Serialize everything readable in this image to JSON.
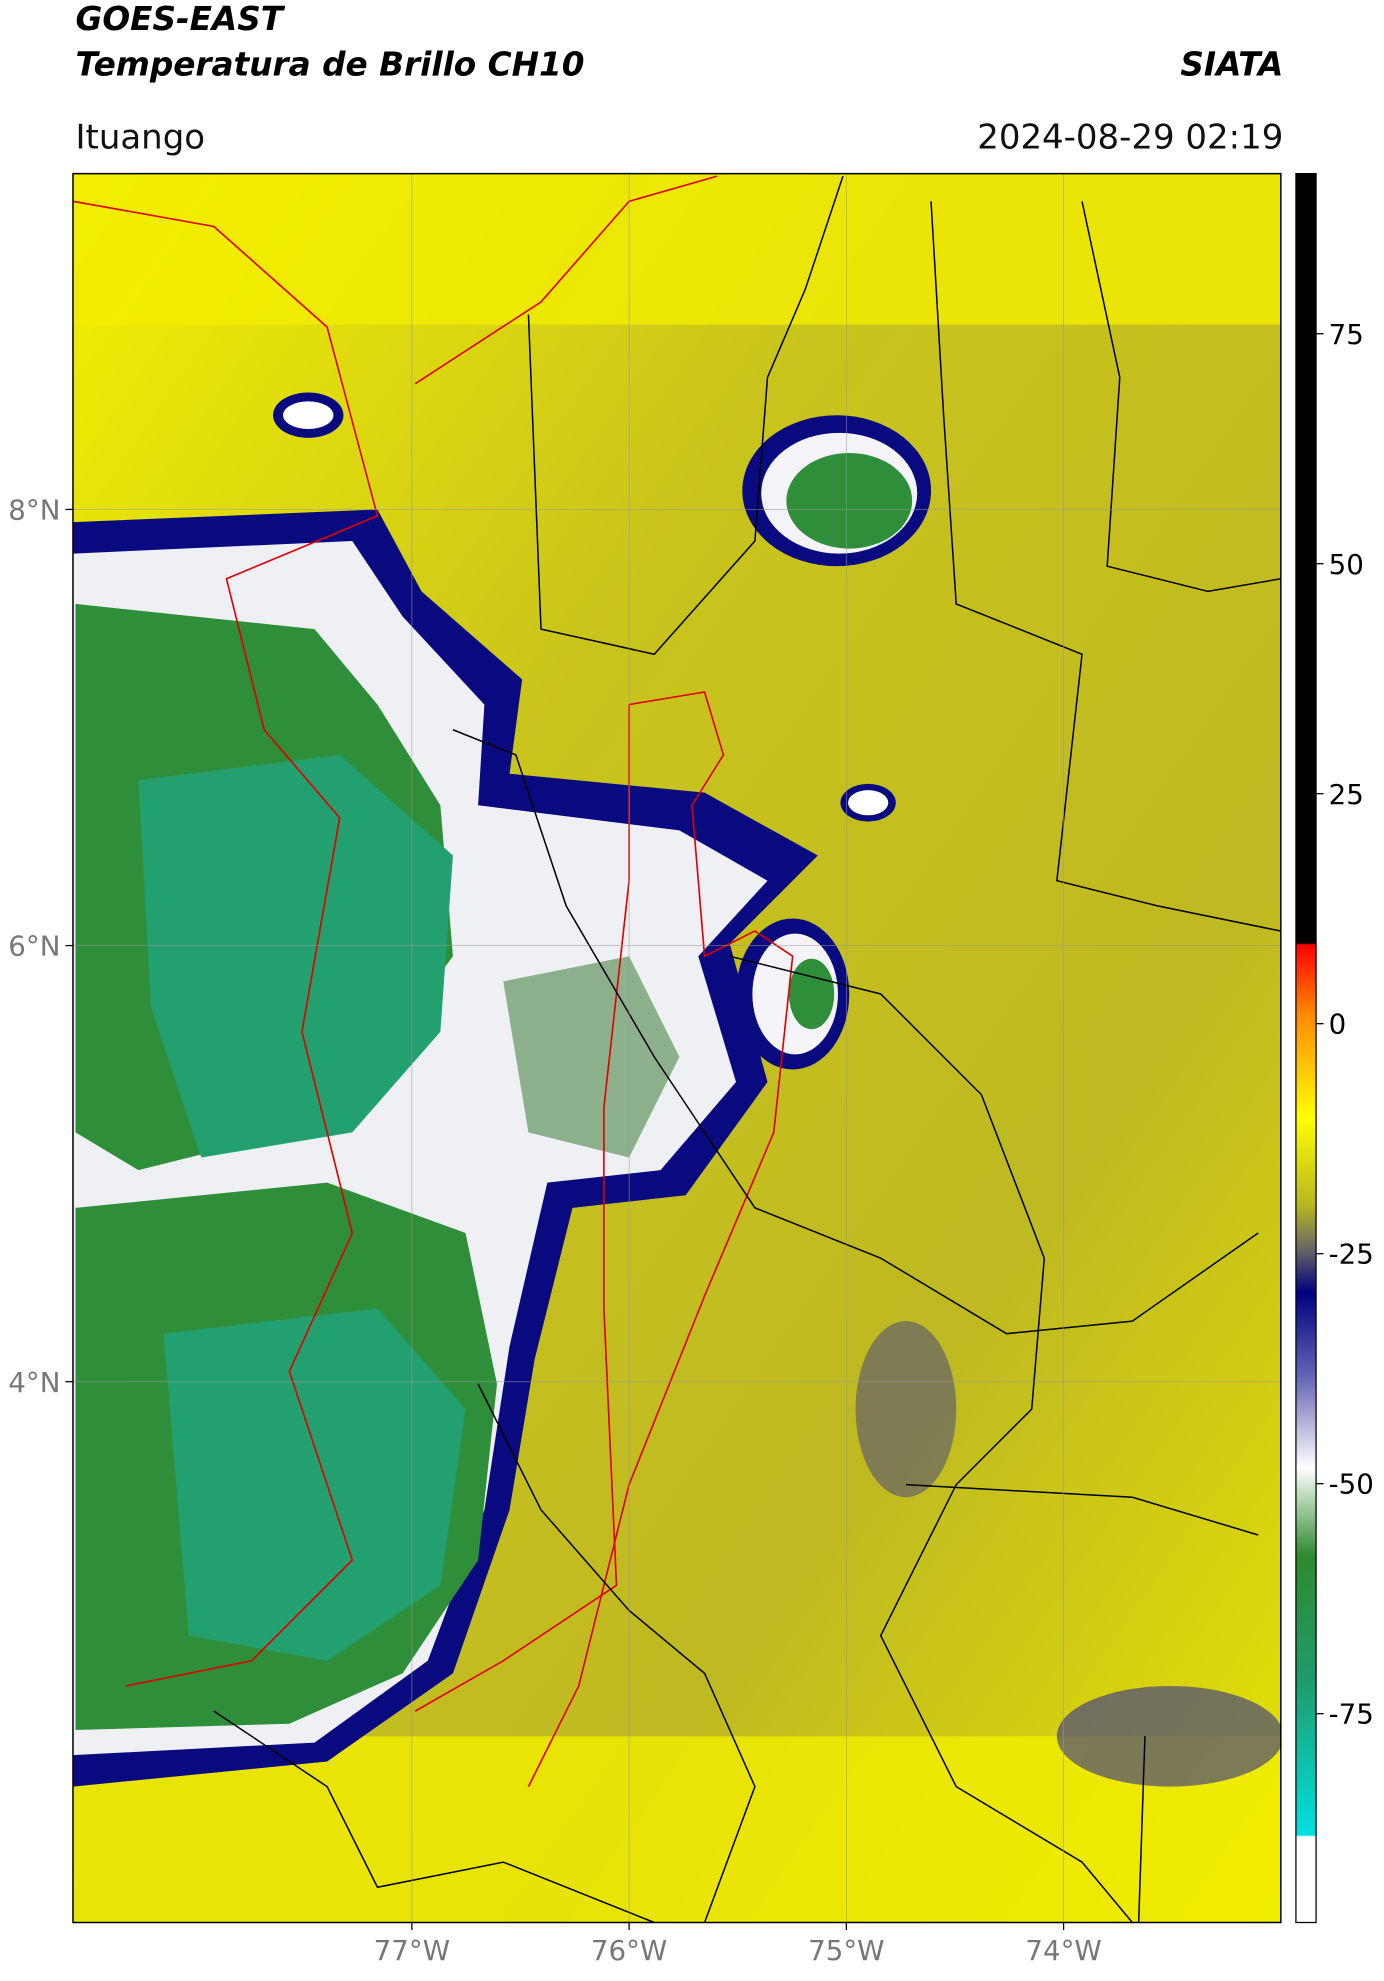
{
  "header": {
    "satellite": "GOES-EAST",
    "product": "Temperatura de Brillo CH10",
    "agency": "SIATA",
    "region": "Ituango",
    "timestamp": "2024-08-29 02:19"
  },
  "map": {
    "lon_range": [
      -78.56,
      -73.0
    ],
    "lat_range": [
      1.52,
      9.54
    ],
    "lon_ticks": [
      {
        "value": -77,
        "label": "77°W"
      },
      {
        "value": -76,
        "label": "76°W"
      },
      {
        "value": -75,
        "label": "75°W"
      },
      {
        "value": -74,
        "label": "74°W"
      }
    ],
    "lat_ticks": [
      {
        "value": 8,
        "label": "8°N"
      },
      {
        "value": 6,
        "label": "6°N"
      },
      {
        "value": 4,
        "label": "4°N"
      }
    ]
  },
  "colorbar": {
    "range": [
      -97.7,
      92.4
    ],
    "ticks": [
      75,
      50,
      25,
      0,
      -25,
      -50,
      -75
    ]
  }
}
